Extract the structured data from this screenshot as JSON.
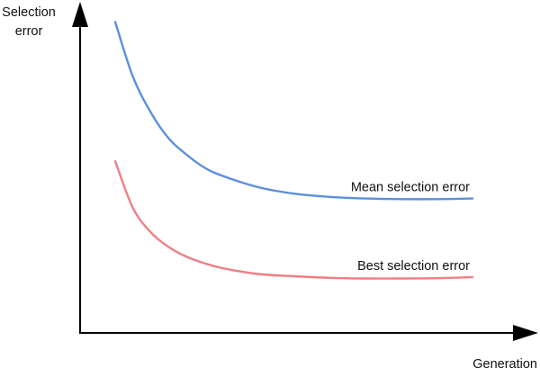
{
  "chart_data": {
    "type": "line",
    "title": "",
    "ylabel": [
      "Selection",
      "error"
    ],
    "xlabel": "Generation",
    "ylim": [
      0,
      100
    ],
    "x": [
      0,
      5,
      10,
      15,
      20,
      25,
      30,
      40,
      50,
      60,
      70,
      80,
      90,
      100
    ],
    "series": [
      {
        "name": "Mean selection error",
        "color": "#5b8fde",
        "values": [
          96,
          79,
          68,
          60,
          55,
          51,
          48.5,
          45,
          43,
          42,
          41.5,
          41.3,
          41.3,
          41.5
        ]
      },
      {
        "name": "Best selection error",
        "color": "#ee7f84",
        "values": [
          53,
          38.5,
          31,
          26.5,
          23.5,
          21.5,
          20,
          18.2,
          17.5,
          17,
          16.8,
          16.8,
          16.9,
          17.2
        ]
      }
    ],
    "grid": false,
    "legend": "inline-right",
    "axis_color": "#000000"
  }
}
